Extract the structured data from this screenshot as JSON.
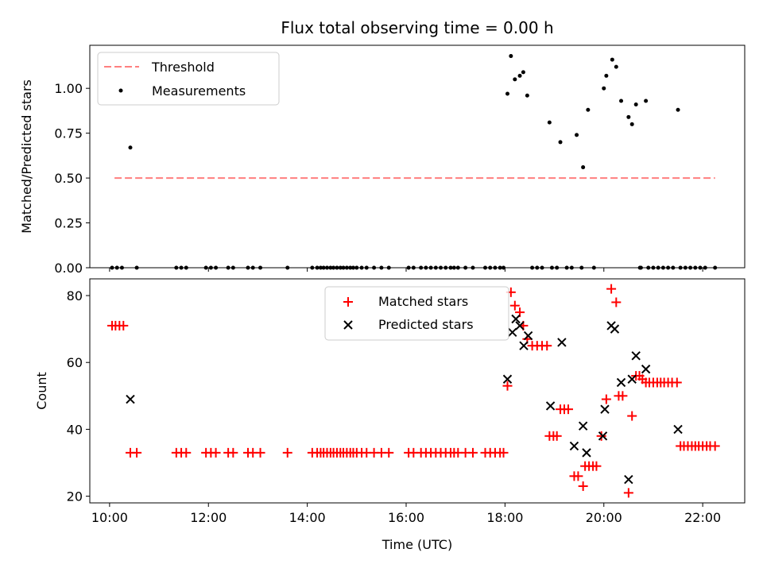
{
  "chart_data": [
    {
      "type": "scatter",
      "title": "Flux total observing time = 0.00 h",
      "xlabel": "",
      "ylabel": "Matched/Predicted stars",
      "xlim": [
        9.6,
        22.85
      ],
      "ylim": [
        0,
        1.24
      ],
      "yticks": [
        "0.00",
        "0.25",
        "0.50",
        "0.75",
        "1.00"
      ],
      "ytick_values": [
        0,
        0.25,
        0.5,
        0.75,
        1.0
      ],
      "legend_position": "upper-left",
      "threshold": {
        "name": "Threshold",
        "y": 0.5,
        "x_range": [
          10.1,
          22.25
        ],
        "color": "#ff7f7f"
      },
      "series": [
        {
          "name": "Measurements",
          "color": "#000000",
          "marker": "dot",
          "points": [
            [
              10.05,
              0
            ],
            [
              10.15,
              0
            ],
            [
              10.25,
              0
            ],
            [
              10.42,
              0.67
            ],
            [
              10.55,
              0
            ],
            [
              11.35,
              0
            ],
            [
              11.45,
              0
            ],
            [
              11.55,
              0
            ],
            [
              11.95,
              0
            ],
            [
              12.05,
              0
            ],
            [
              12.15,
              0
            ],
            [
              12.4,
              0
            ],
            [
              12.5,
              0
            ],
            [
              12.8,
              0
            ],
            [
              12.9,
              0
            ],
            [
              13.05,
              0
            ],
            [
              13.6,
              0
            ],
            [
              14.1,
              0
            ],
            [
              14.2,
              0
            ],
            [
              14.27,
              0
            ],
            [
              14.33,
              0
            ],
            [
              14.4,
              0
            ],
            [
              14.47,
              0
            ],
            [
              14.53,
              0
            ],
            [
              14.6,
              0
            ],
            [
              14.67,
              0
            ],
            [
              14.73,
              0
            ],
            [
              14.8,
              0
            ],
            [
              14.87,
              0
            ],
            [
              14.93,
              0
            ],
            [
              15.0,
              0
            ],
            [
              15.1,
              0
            ],
            [
              15.2,
              0
            ],
            [
              15.35,
              0
            ],
            [
              15.5,
              0
            ],
            [
              15.65,
              0
            ],
            [
              16.05,
              0
            ],
            [
              16.15,
              0
            ],
            [
              16.3,
              0
            ],
            [
              16.4,
              0
            ],
            [
              16.5,
              0
            ],
            [
              16.6,
              0
            ],
            [
              16.7,
              0
            ],
            [
              16.8,
              0
            ],
            [
              16.9,
              0
            ],
            [
              16.97,
              0
            ],
            [
              17.05,
              0
            ],
            [
              17.2,
              0
            ],
            [
              17.35,
              0
            ],
            [
              17.6,
              0
            ],
            [
              17.7,
              0
            ],
            [
              17.8,
              0
            ],
            [
              17.9,
              0
            ],
            [
              17.97,
              0
            ],
            [
              18.05,
              0.97
            ],
            [
              18.12,
              1.18
            ],
            [
              18.2,
              1.05
            ],
            [
              18.3,
              1.07
            ],
            [
              18.37,
              1.09
            ],
            [
              18.45,
              0.96
            ],
            [
              18.55,
              0
            ],
            [
              18.65,
              0
            ],
            [
              18.75,
              0
            ],
            [
              18.9,
              0.81
            ],
            [
              18.95,
              0
            ],
            [
              19.05,
              0
            ],
            [
              19.12,
              0.7
            ],
            [
              19.25,
              0
            ],
            [
              19.35,
              0
            ],
            [
              19.45,
              0.74
            ],
            [
              19.55,
              0
            ],
            [
              19.58,
              0.56
            ],
            [
              19.68,
              0.88
            ],
            [
              19.8,
              0
            ],
            [
              20.0,
              1.0
            ],
            [
              20.05,
              1.07
            ],
            [
              20.17,
              1.16
            ],
            [
              20.25,
              1.12
            ],
            [
              20.35,
              0.93
            ],
            [
              20.5,
              0.84
            ],
            [
              20.57,
              0.8
            ],
            [
              20.65,
              0.91
            ],
            [
              20.73,
              0
            ],
            [
              20.85,
              0.93
            ],
            [
              20.75,
              0
            ],
            [
              20.9,
              0
            ],
            [
              21.0,
              0
            ],
            [
              21.1,
              0
            ],
            [
              21.2,
              0
            ],
            [
              21.3,
              0
            ],
            [
              21.4,
              0
            ],
            [
              21.5,
              0.88
            ],
            [
              21.55,
              0
            ],
            [
              21.65,
              0
            ],
            [
              21.75,
              0
            ],
            [
              21.85,
              0
            ],
            [
              21.95,
              0
            ],
            [
              22.05,
              0
            ],
            [
              22.25,
              0
            ]
          ]
        }
      ]
    },
    {
      "type": "scatter",
      "title": "",
      "xlabel": "Time (UTC)",
      "ylabel": "Count",
      "xlim": [
        9.6,
        22.85
      ],
      "ylim": [
        18,
        85
      ],
      "xticks": [
        "10:00",
        "12:00",
        "14:00",
        "16:00",
        "18:00",
        "20:00",
        "22:00"
      ],
      "xtick_values": [
        10,
        12,
        14,
        16,
        18,
        20,
        22
      ],
      "yticks": [
        "20",
        "40",
        "60",
        "80"
      ],
      "ytick_values": [
        20,
        40,
        60,
        80
      ],
      "legend_position": "upper-center",
      "series": [
        {
          "name": "Matched stars",
          "color": "#ff0000",
          "marker": "plus",
          "points": [
            [
              10.05,
              71
            ],
            [
              10.12,
              71
            ],
            [
              10.2,
              71
            ],
            [
              10.28,
              71
            ],
            [
              10.42,
              33
            ],
            [
              10.55,
              33
            ],
            [
              11.35,
              33
            ],
            [
              11.45,
              33
            ],
            [
              11.55,
              33
            ],
            [
              11.95,
              33
            ],
            [
              12.05,
              33
            ],
            [
              12.15,
              33
            ],
            [
              12.4,
              33
            ],
            [
              12.5,
              33
            ],
            [
              12.8,
              33
            ],
            [
              12.9,
              33
            ],
            [
              13.05,
              33
            ],
            [
              13.6,
              33
            ],
            [
              14.1,
              33
            ],
            [
              14.2,
              33
            ],
            [
              14.27,
              33
            ],
            [
              14.33,
              33
            ],
            [
              14.4,
              33
            ],
            [
              14.47,
              33
            ],
            [
              14.53,
              33
            ],
            [
              14.6,
              33
            ],
            [
              14.67,
              33
            ],
            [
              14.73,
              33
            ],
            [
              14.8,
              33
            ],
            [
              14.87,
              33
            ],
            [
              14.93,
              33
            ],
            [
              15.0,
              33
            ],
            [
              15.1,
              33
            ],
            [
              15.2,
              33
            ],
            [
              15.35,
              33
            ],
            [
              15.5,
              33
            ],
            [
              15.65,
              33
            ],
            [
              16.05,
              33
            ],
            [
              16.15,
              33
            ],
            [
              16.3,
              33
            ],
            [
              16.4,
              33
            ],
            [
              16.5,
              33
            ],
            [
              16.6,
              33
            ],
            [
              16.7,
              33
            ],
            [
              16.8,
              33
            ],
            [
              16.9,
              33
            ],
            [
              16.97,
              33
            ],
            [
              17.05,
              33
            ],
            [
              17.2,
              33
            ],
            [
              17.35,
              33
            ],
            [
              17.6,
              33
            ],
            [
              17.7,
              33
            ],
            [
              17.8,
              33
            ],
            [
              17.9,
              33
            ],
            [
              17.97,
              33
            ],
            [
              18.05,
              53
            ],
            [
              18.12,
              81
            ],
            [
              18.2,
              77
            ],
            [
              18.3,
              75
            ],
            [
              18.37,
              71
            ],
            [
              18.45,
              67
            ],
            [
              18.55,
              65
            ],
            [
              18.65,
              65
            ],
            [
              18.75,
              65
            ],
            [
              18.85,
              65
            ],
            [
              18.9,
              38
            ],
            [
              18.98,
              38
            ],
            [
              19.05,
              38
            ],
            [
              19.12,
              46
            ],
            [
              19.2,
              46
            ],
            [
              19.28,
              46
            ],
            [
              19.4,
              26
            ],
            [
              19.48,
              26
            ],
            [
              19.58,
              23
            ],
            [
              19.62,
              29
            ],
            [
              19.7,
              29
            ],
            [
              19.78,
              29
            ],
            [
              19.85,
              29
            ],
            [
              19.95,
              38
            ],
            [
              20.05,
              49
            ],
            [
              20.15,
              82
            ],
            [
              20.25,
              78
            ],
            [
              20.3,
              50
            ],
            [
              20.38,
              50
            ],
            [
              20.5,
              21
            ],
            [
              20.57,
              44
            ],
            [
              20.65,
              56
            ],
            [
              20.72,
              56
            ],
            [
              20.78,
              55
            ],
            [
              20.85,
              54
            ],
            [
              20.92,
              54
            ],
            [
              21.0,
              54
            ],
            [
              21.08,
              54
            ],
            [
              21.15,
              54
            ],
            [
              21.22,
              54
            ],
            [
              21.3,
              54
            ],
            [
              21.38,
              54
            ],
            [
              21.48,
              54
            ],
            [
              21.55,
              35
            ],
            [
              21.62,
              35
            ],
            [
              21.7,
              35
            ],
            [
              21.78,
              35
            ],
            [
              21.85,
              35
            ],
            [
              21.92,
              35
            ],
            [
              22.0,
              35
            ],
            [
              22.08,
              35
            ],
            [
              22.15,
              35
            ],
            [
              22.25,
              35
            ]
          ]
        },
        {
          "name": "Predicted stars",
          "color": "#000000",
          "marker": "x",
          "points": [
            [
              10.42,
              49
            ],
            [
              18.05,
              55
            ],
            [
              18.15,
              69
            ],
            [
              18.22,
              73
            ],
            [
              18.3,
              71
            ],
            [
              18.38,
              65
            ],
            [
              18.47,
              68
            ],
            [
              19.15,
              66
            ],
            [
              18.92,
              47
            ],
            [
              19.4,
              35
            ],
            [
              19.58,
              41
            ],
            [
              19.65,
              33
            ],
            [
              19.98,
              38
            ],
            [
              20.02,
              46
            ],
            [
              20.15,
              71
            ],
            [
              20.22,
              70
            ],
            [
              20.35,
              54
            ],
            [
              20.5,
              25
            ],
            [
              20.57,
              55
            ],
            [
              20.65,
              62
            ],
            [
              20.85,
              58
            ],
            [
              21.5,
              40
            ]
          ]
        }
      ]
    }
  ]
}
